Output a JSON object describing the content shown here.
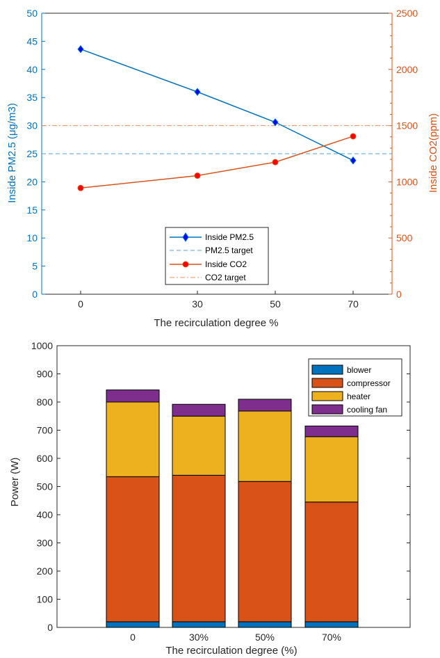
{
  "chart_data": [
    {
      "type": "line",
      "xlabel": "The recirculation degree %",
      "ylabel_left": "Inside PM2.5 (μg/m3)",
      "ylabel_right": "Inside CO2(ppm)",
      "x_tick_labels": [
        "0",
        "30",
        "50",
        "70"
      ],
      "x": [
        0,
        30,
        50,
        70
      ],
      "xlim": [
        -10,
        80
      ],
      "ylim_left": [
        0,
        50
      ],
      "ylim_right": [
        0,
        2500
      ],
      "y_ticks_left": [
        "0",
        "5",
        "10",
        "15",
        "20",
        "25",
        "30",
        "35",
        "40",
        "45",
        "50"
      ],
      "y_ticks_right": [
        "0",
        "500",
        "1000",
        "1500",
        "2000",
        "2500"
      ],
      "series": [
        {
          "name": "Inside PM2.5",
          "axis": "left",
          "values": [
            43.6,
            36.0,
            30.6,
            23.8
          ],
          "color": "#0072BD",
          "marker": "diamond"
        },
        {
          "name": "PM2.5 target",
          "axis": "left",
          "values": [
            25,
            25,
            25,
            25
          ],
          "color": "#4DA3D6",
          "style": "dashed"
        },
        {
          "name": "Inside CO2",
          "axis": "right",
          "values": [
            945,
            1055,
            1175,
            1405
          ],
          "color": "#D95319",
          "marker": "circle"
        },
        {
          "name": "CO2 target",
          "axis": "right",
          "values": [
            1500,
            1500,
            1500,
            1500
          ],
          "color": "#EE8F5E",
          "style": "dashdot"
        }
      ],
      "legend": "bottom-center"
    },
    {
      "type": "bar",
      "stacked": true,
      "xlabel": "The recirculation degree (%)",
      "ylabel": "Power (W)",
      "categories": [
        "0",
        "30%",
        "50%",
        "70%"
      ],
      "ylim": [
        0,
        1000
      ],
      "y_ticks": [
        "0",
        "100",
        "200",
        "300",
        "400",
        "500",
        "600",
        "700",
        "800",
        "900",
        "1000"
      ],
      "series": [
        {
          "name": "blower",
          "values": [
            20,
            20,
            20,
            20
          ],
          "color": "#0072BD"
        },
        {
          "name": "compressor",
          "values": [
            515,
            520,
            498,
            425
          ],
          "color": "#D95319"
        },
        {
          "name": "heater",
          "values": [
            265,
            210,
            250,
            232
          ],
          "color": "#EDB120"
        },
        {
          "name": "cooling fan",
          "values": [
            43,
            42,
            42,
            38
          ],
          "color": "#7E2F8E"
        }
      ],
      "legend": "top-right"
    }
  ]
}
